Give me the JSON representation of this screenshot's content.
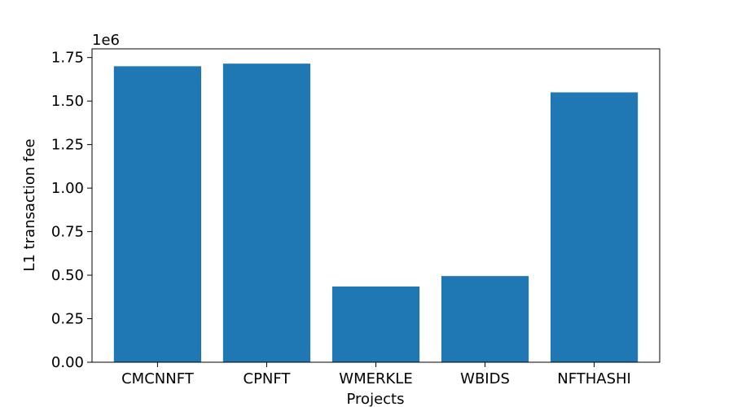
{
  "chart_data": {
    "type": "bar",
    "title": "",
    "xlabel": "Projects",
    "ylabel": "L1 transaction fee",
    "y_offset_label": "1e6",
    "categories": [
      "CMCNNFT",
      "CPNFT",
      "WMERKLE",
      "WBIDS",
      "NFTHASHI"
    ],
    "values": [
      1700000,
      1715000,
      435000,
      495000,
      1550000
    ],
    "ylim": [
      0,
      1800000
    ],
    "yticks": [
      0,
      250000,
      500000,
      750000,
      1000000,
      1250000,
      1500000,
      1750000
    ],
    "ytick_labels": [
      "0.00",
      "0.25",
      "0.50",
      "0.75",
      "1.00",
      "1.25",
      "1.50",
      "1.75"
    ],
    "grid": false,
    "bar_color": "#1f77b4"
  }
}
